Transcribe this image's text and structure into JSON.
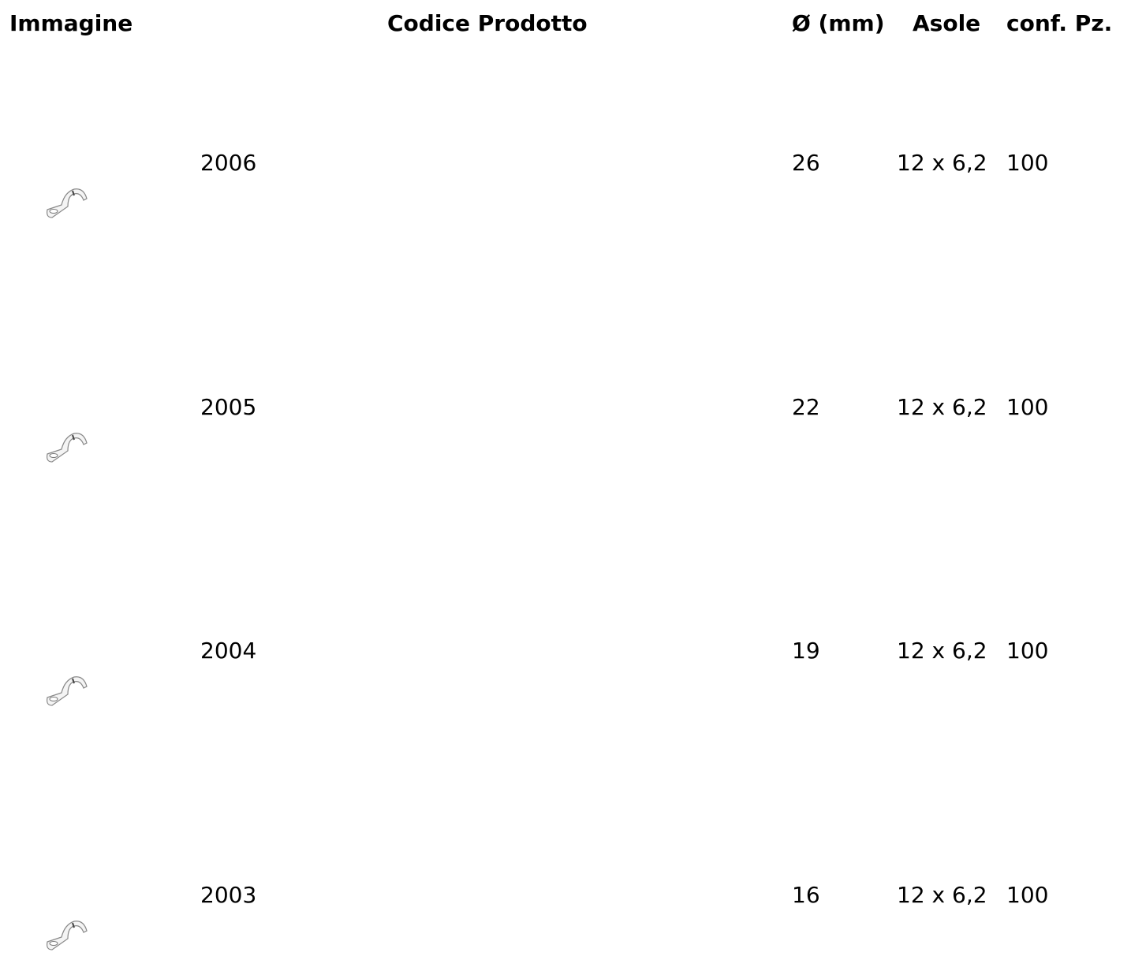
{
  "table": {
    "headers": [
      "Immagine",
      "Codice Prodotto",
      "Ø (mm)",
      "Asole",
      "conf. Pz."
    ],
    "rows": [
      [
        "2006",
        "26",
        "12 x 6,2",
        "100"
      ],
      [
        "2005",
        "22",
        "12 x 6,2",
        "100"
      ],
      [
        "2004",
        "19",
        "12 x 6,2",
        "100"
      ],
      [
        "2003",
        "16",
        "12 x 6,2",
        "100"
      ]
    ]
  }
}
